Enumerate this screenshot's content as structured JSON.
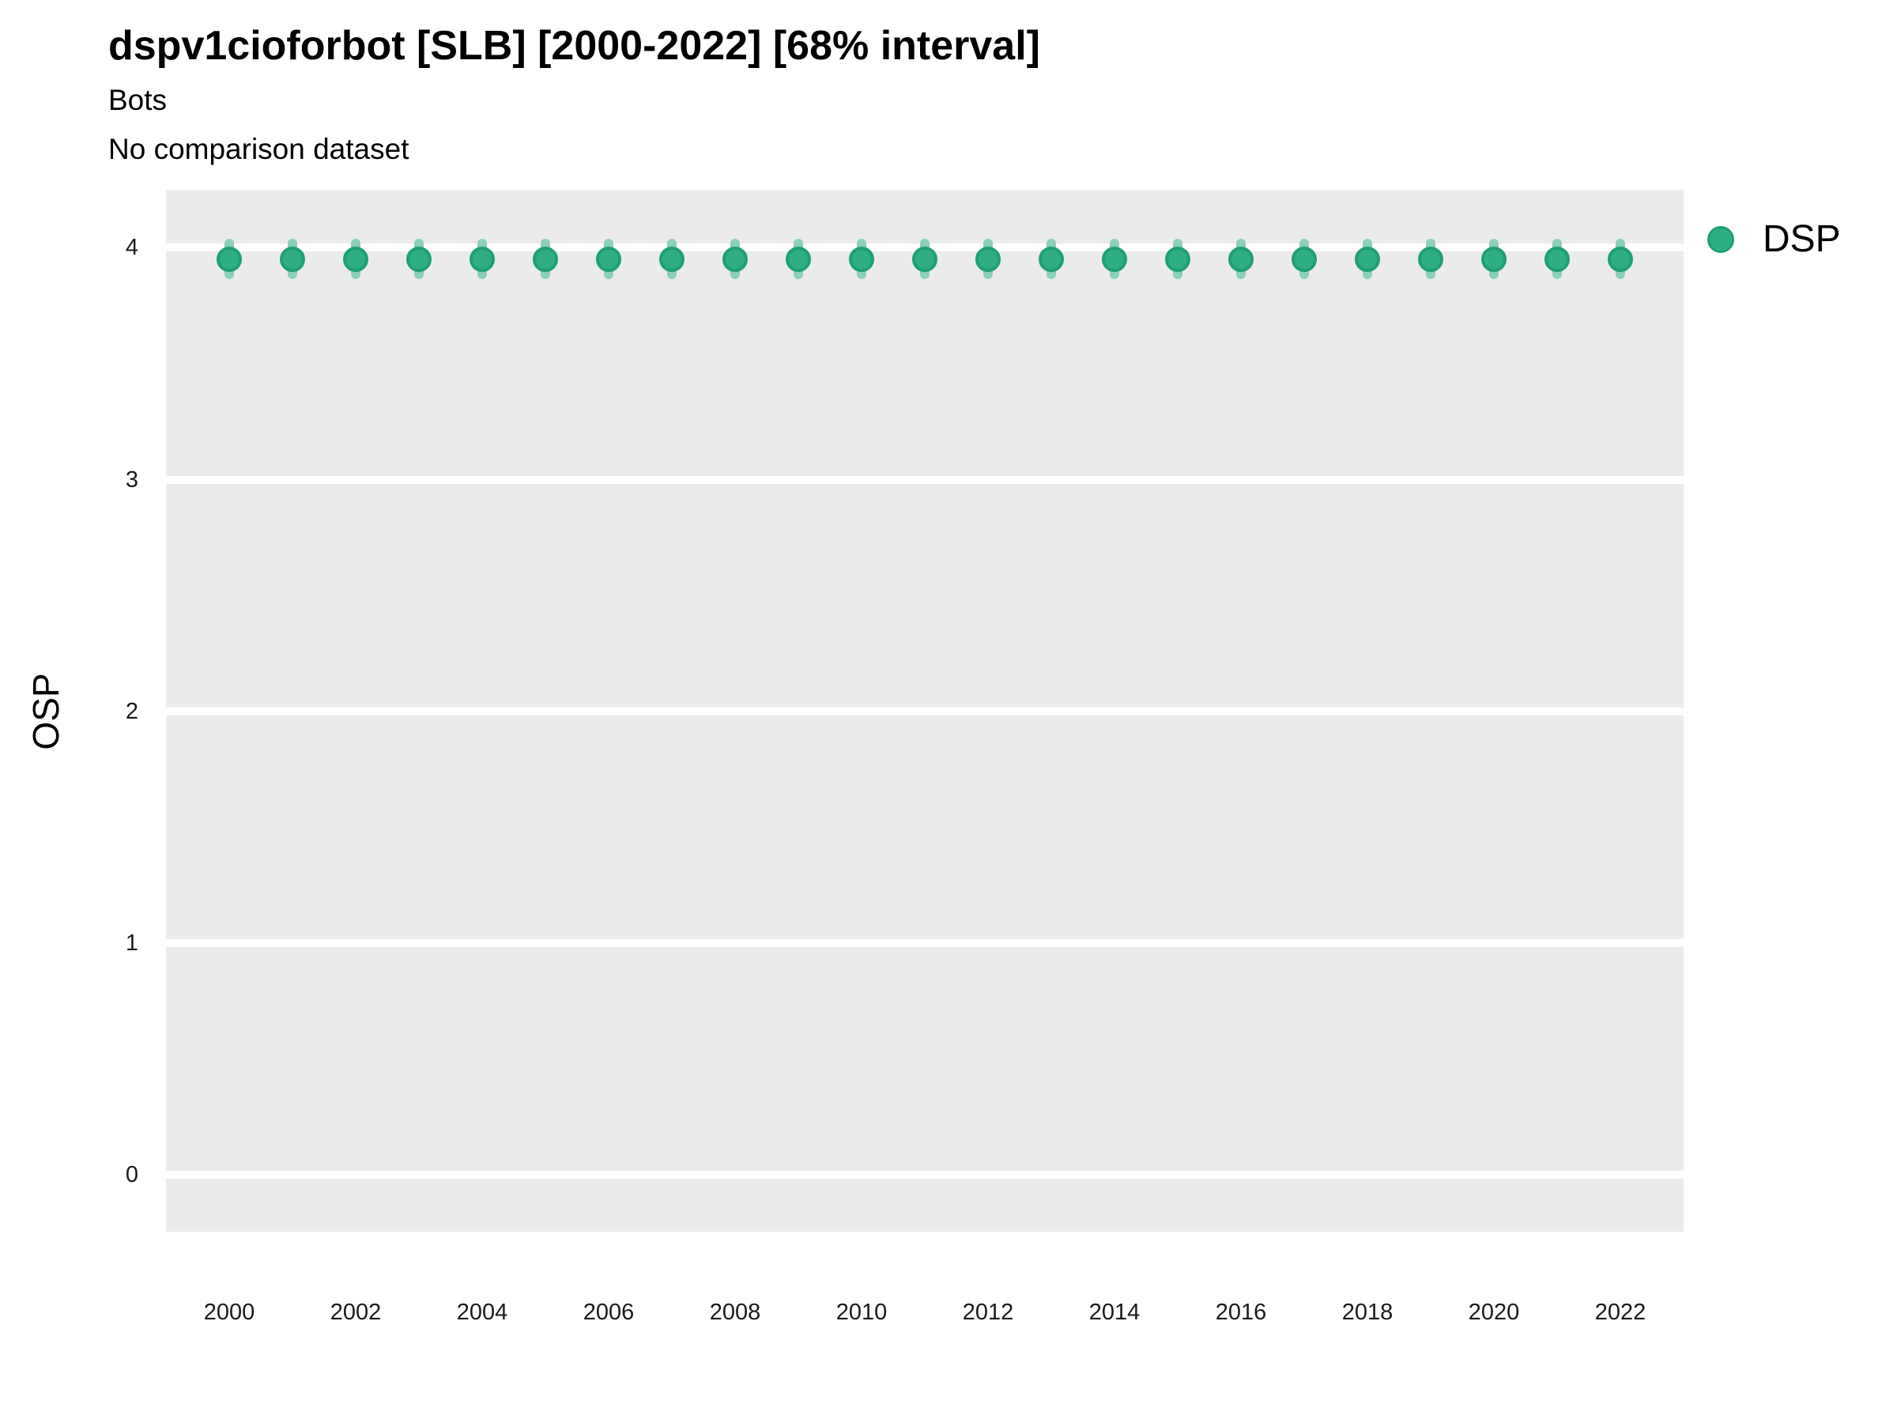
{
  "header": {
    "title": "dspv1cioforbot [SLB] [2000-2022] [68% interval]",
    "subtitle": "Bots",
    "note": "No comparison dataset"
  },
  "legend": {
    "items": [
      {
        "label": "DSP",
        "swatch_color": "#2FAE85",
        "swatch_stroke": "#1E9F75"
      }
    ]
  },
  "colors": {
    "panel_bg": "#EBEBEB",
    "gridline": "#FFFFFF",
    "point_fill": "#2FAE85",
    "point_stroke": "#1E9F75",
    "errorbar": "#8BD0B8",
    "text": "#000000"
  },
  "chart_data": {
    "type": "scatter",
    "title": "dspv1cioforbot [SLB] [2000-2022] [68% interval]",
    "subtitle": "Bots",
    "note": "No comparison dataset",
    "xlabel": "",
    "ylabel": "OSP",
    "interval": "68%",
    "grid": "major-horizontal-only",
    "legend_position": "top-right",
    "x": [
      2000,
      2001,
      2002,
      2003,
      2004,
      2005,
      2006,
      2007,
      2008,
      2009,
      2010,
      2011,
      2012,
      2013,
      2014,
      2015,
      2016,
      2017,
      2018,
      2019,
      2020,
      2021,
      2022
    ],
    "series": [
      {
        "name": "DSP",
        "values": [
          3.95,
          3.95,
          3.95,
          3.95,
          3.95,
          3.95,
          3.95,
          3.95,
          3.95,
          3.95,
          3.95,
          3.95,
          3.95,
          3.95,
          3.95,
          3.95,
          3.95,
          3.95,
          3.95,
          3.95,
          3.95,
          3.95,
          3.95
        ],
        "interval_low": [
          3.88,
          3.88,
          3.88,
          3.88,
          3.88,
          3.88,
          3.88,
          3.88,
          3.88,
          3.88,
          3.88,
          3.88,
          3.88,
          3.88,
          3.88,
          3.88,
          3.88,
          3.88,
          3.88,
          3.88,
          3.88,
          3.88,
          3.88
        ],
        "interval_high": [
          4.02,
          4.02,
          4.02,
          4.02,
          4.02,
          4.02,
          4.02,
          4.02,
          4.02,
          4.02,
          4.02,
          4.02,
          4.02,
          4.02,
          4.02,
          4.02,
          4.02,
          4.02,
          4.02,
          4.02,
          4.02,
          4.02,
          4.02
        ]
      }
    ],
    "xlim": [
      1999,
      2023
    ],
    "ylim": [
      -0.245,
      4.25
    ],
    "xticks": [
      2000,
      2002,
      2004,
      2006,
      2008,
      2010,
      2012,
      2014,
      2016,
      2018,
      2020,
      2022
    ],
    "yticks": [
      0,
      1,
      2,
      3,
      4
    ]
  }
}
